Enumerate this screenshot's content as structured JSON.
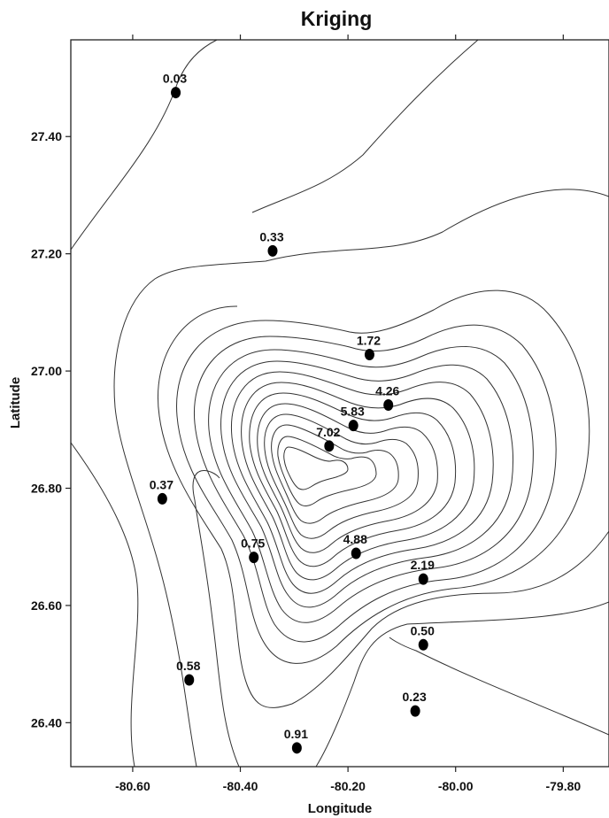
{
  "chart_data": {
    "type": "scatter",
    "title": "Kriging",
    "xlabel": "Longitude",
    "ylabel": "Latitude",
    "xlim": [
      -80.715,
      -79.715
    ],
    "ylim": [
      26.325,
      27.565
    ],
    "x_ticks": [
      "-80.60",
      "-80.40",
      "-80.20",
      "-80.00",
      "-79.80"
    ],
    "x_tick_values": [
      -80.6,
      -80.4,
      -80.2,
      -80.0,
      -79.8
    ],
    "y_ticks": [
      "27.40",
      "27.20",
      "27.00",
      "26.80",
      "26.60",
      "26.40"
    ],
    "y_tick_values": [
      27.4,
      27.2,
      27.0,
      26.8,
      26.6,
      26.4
    ],
    "grid": false,
    "contours": true,
    "series": [
      {
        "points": [
          {
            "x": -80.52,
            "y": 27.475,
            "label": "0.03"
          },
          {
            "x": -80.34,
            "y": 27.205,
            "label": "0.33"
          },
          {
            "x": -80.16,
            "y": 27.028,
            "label": "1.72"
          },
          {
            "x": -80.125,
            "y": 26.942,
            "label": "4.26"
          },
          {
            "x": -80.19,
            "y": 26.907,
            "label": "5.83"
          },
          {
            "x": -80.235,
            "y": 26.872,
            "label": "7.02"
          },
          {
            "x": -80.545,
            "y": 26.782,
            "label": "0.37"
          },
          {
            "x": -80.375,
            "y": 26.682,
            "label": "0.75"
          },
          {
            "x": -80.185,
            "y": 26.689,
            "label": "4.88"
          },
          {
            "x": -80.06,
            "y": 26.645,
            "label": "2.19"
          },
          {
            "x": -80.06,
            "y": 26.533,
            "label": "0.50"
          },
          {
            "x": -80.495,
            "y": 26.473,
            "label": "0.58"
          },
          {
            "x": -80.075,
            "y": 26.42,
            "label": "0.23"
          },
          {
            "x": -80.295,
            "y": 26.357,
            "label": "0.91"
          }
        ]
      }
    ]
  }
}
